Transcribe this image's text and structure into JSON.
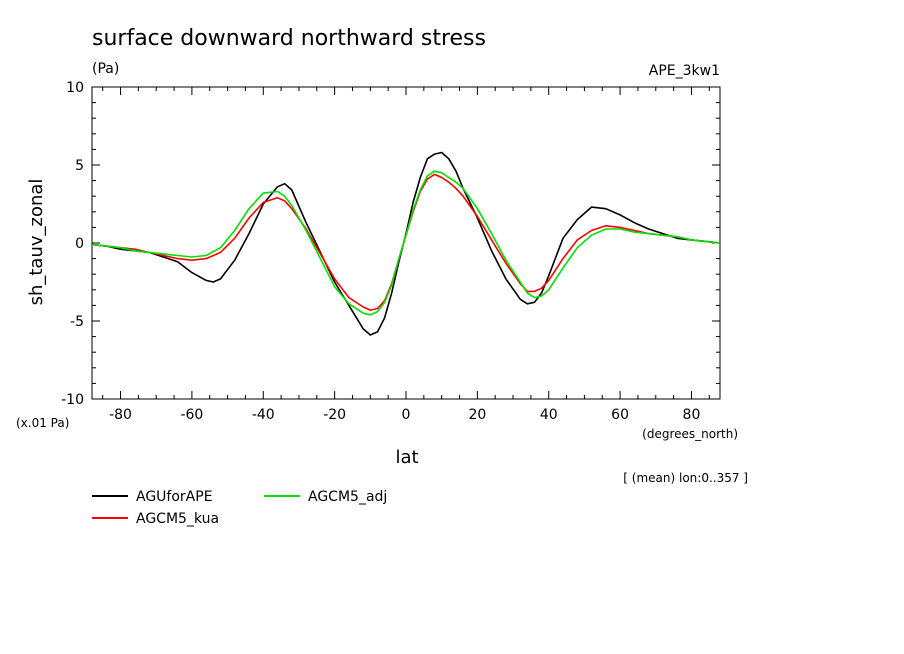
{
  "chart_data": {
    "type": "line",
    "title": "surface downward northward stress",
    "units": "(Pa)",
    "experiment": "APE_3kw1",
    "xlabel": "lat",
    "x_units": "(degrees_north)",
    "ylabel": "sh_tauv_zonal",
    "y_scale_note": "(x.01 Pa)",
    "mean_note": "[ (mean) lon:0..357 ]",
    "xlim": [
      -88,
      88
    ],
    "ylim": [
      -10,
      10
    ],
    "x_ticks": [
      -80,
      -60,
      -40,
      -20,
      0,
      20,
      40,
      60,
      80
    ],
    "x_tick_labels": [
      "-80",
      "-60",
      "-40",
      "-20",
      "0",
      "20",
      "40",
      "60",
      "80"
    ],
    "y_ticks": [
      -10,
      -5,
      0,
      5,
      10
    ],
    "y_tick_labels": [
      "-10",
      "-5",
      "0",
      "5",
      "10"
    ],
    "grid": false,
    "legend_position": "bottom-left",
    "series": [
      {
        "name": "AGUforAPE",
        "color": "#000000",
        "x": [
          -88,
          -84,
          -80,
          -76,
          -72,
          -68,
          -64,
          -60,
          -56,
          -54,
          -52,
          -48,
          -44,
          -40,
          -36,
          -34,
          -32,
          -28,
          -24,
          -20,
          -16,
          -12,
          -10,
          -8,
          -6,
          -4,
          -2,
          0,
          2,
          4,
          6,
          8,
          10,
          12,
          14,
          16,
          20,
          24,
          28,
          32,
          34,
          36,
          38,
          40,
          44,
          48,
          52,
          56,
          60,
          64,
          68,
          72,
          76,
          80,
          84,
          88
        ],
        "y": [
          -0.1,
          -0.2,
          -0.4,
          -0.5,
          -0.6,
          -0.9,
          -1.2,
          -1.9,
          -2.4,
          -2.5,
          -2.3,
          -1.1,
          0.6,
          2.5,
          3.6,
          3.8,
          3.4,
          1.3,
          -0.6,
          -2.5,
          -4.0,
          -5.5,
          -5.9,
          -5.7,
          -4.8,
          -3.2,
          -1.2,
          0.6,
          2.6,
          4.2,
          5.4,
          5.7,
          5.8,
          5.4,
          4.6,
          3.5,
          1.6,
          -0.5,
          -2.3,
          -3.6,
          -3.9,
          -3.8,
          -3.2,
          -2.1,
          0.3,
          1.5,
          2.3,
          2.2,
          1.8,
          1.3,
          0.9,
          0.6,
          0.3,
          0.2,
          0.1,
          0.0
        ]
      },
      {
        "name": "AGCM5_kua",
        "color": "#ff0000",
        "x": [
          -88,
          -84,
          -80,
          -76,
          -72,
          -68,
          -64,
          -60,
          -56,
          -52,
          -48,
          -44,
          -40,
          -36,
          -34,
          -32,
          -28,
          -24,
          -20,
          -16,
          -12,
          -10,
          -8,
          -6,
          -4,
          -2,
          0,
          2,
          4,
          6,
          8,
          10,
          12,
          14,
          16,
          20,
          24,
          28,
          32,
          34,
          36,
          38,
          40,
          44,
          48,
          52,
          56,
          60,
          64,
          68,
          72,
          76,
          80,
          84,
          88
        ],
        "y": [
          -0.1,
          -0.2,
          -0.3,
          -0.4,
          -0.6,
          -0.8,
          -1.0,
          -1.1,
          -1.0,
          -0.6,
          0.3,
          1.6,
          2.6,
          2.9,
          2.7,
          2.2,
          0.9,
          -0.7,
          -2.3,
          -3.5,
          -4.1,
          -4.3,
          -4.2,
          -3.7,
          -2.6,
          -1.0,
          0.5,
          2.0,
          3.3,
          4.1,
          4.4,
          4.2,
          3.9,
          3.5,
          3.0,
          1.7,
          0.2,
          -1.3,
          -2.6,
          -3.1,
          -3.1,
          -2.9,
          -2.4,
          -1.0,
          0.2,
          0.8,
          1.1,
          1.0,
          0.8,
          0.6,
          0.5,
          0.4,
          0.2,
          0.1,
          0.0
        ]
      },
      {
        "name": "AGCM5_adj",
        "color": "#00e000",
        "x": [
          -88,
          -84,
          -80,
          -76,
          -72,
          -68,
          -64,
          -60,
          -56,
          -52,
          -48,
          -44,
          -40,
          -36,
          -34,
          -32,
          -28,
          -24,
          -20,
          -16,
          -12,
          -10,
          -8,
          -6,
          -4,
          -2,
          0,
          2,
          4,
          6,
          8,
          10,
          12,
          14,
          16,
          20,
          24,
          28,
          32,
          34,
          36,
          38,
          40,
          44,
          48,
          52,
          56,
          60,
          64,
          68,
          72,
          76,
          80,
          84,
          88
        ],
        "y": [
          -0.1,
          -0.2,
          -0.3,
          -0.5,
          -0.6,
          -0.7,
          -0.8,
          -0.9,
          -0.8,
          -0.3,
          0.8,
          2.2,
          3.2,
          3.3,
          3.0,
          2.4,
          0.8,
          -1.0,
          -2.8,
          -3.9,
          -4.5,
          -4.6,
          -4.4,
          -3.8,
          -2.7,
          -1.0,
          0.5,
          2.1,
          3.4,
          4.3,
          4.6,
          4.5,
          4.2,
          3.9,
          3.5,
          2.2,
          0.6,
          -1.1,
          -2.5,
          -3.2,
          -3.5,
          -3.4,
          -3.0,
          -1.6,
          -0.3,
          0.5,
          0.9,
          0.9,
          0.7,
          0.6,
          0.5,
          0.4,
          0.2,
          0.1,
          0.0
        ]
      }
    ]
  }
}
